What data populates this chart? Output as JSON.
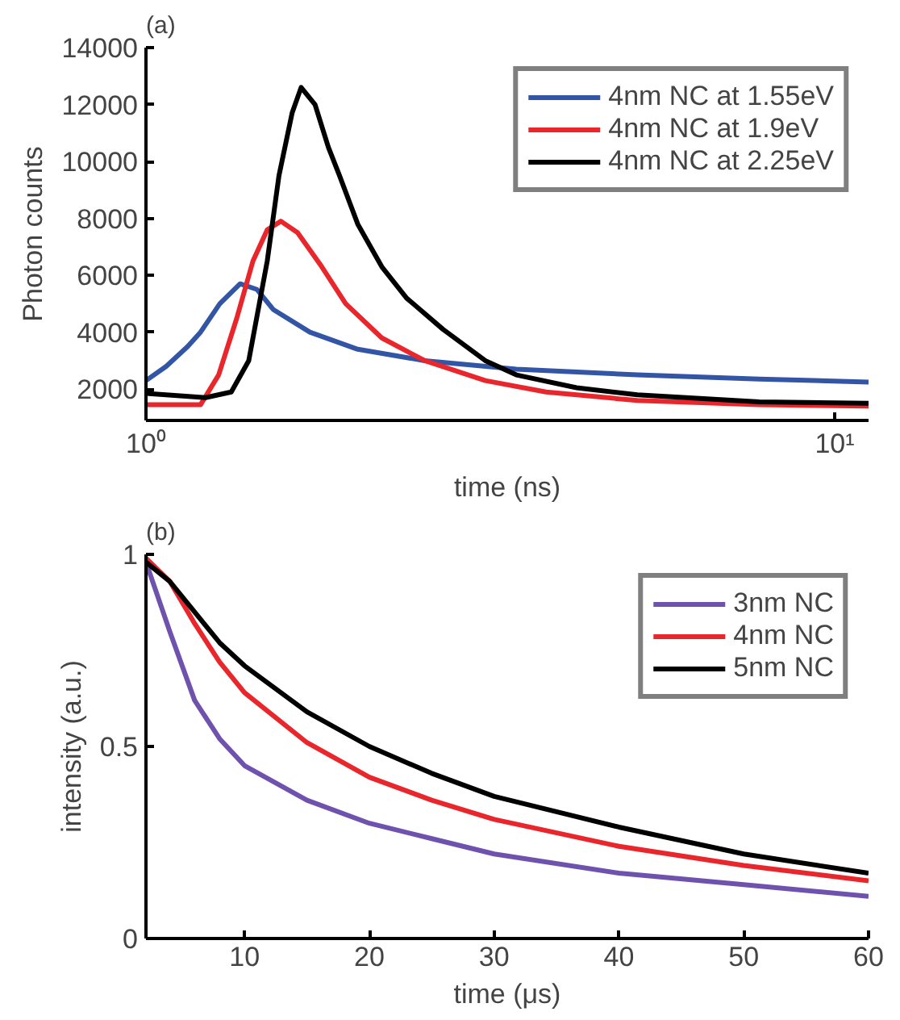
{
  "chart_data": [
    {
      "type": "line",
      "title": "(a)",
      "xlabel": "time (ns)",
      "ylabel": "Photon counts",
      "log": "x",
      "xlim": [
        1,
        11.2
      ],
      "xticks": [
        {
          "value": 1,
          "label": "10⁰"
        },
        {
          "value": 10,
          "label": "10¹"
        }
      ],
      "ylim": [
        900,
        14000
      ],
      "yticks": [
        2000,
        4000,
        6000,
        8000,
        10000,
        12000,
        14000
      ],
      "legend": "top right",
      "grid": false,
      "series": [
        {
          "name": "4nm NC at 1.55eV",
          "color": "#3355a5",
          "x": [
            1,
            1.07,
            1.15,
            1.2,
            1.28,
            1.37,
            1.45,
            1.53,
            1.73,
            2.03,
            2.54,
            3.45,
            5.17,
            7.77,
            11.2
          ],
          "values": [
            2300,
            2800,
            3500,
            4000,
            5000,
            5700,
            5500,
            4800,
            4000,
            3400,
            3000,
            2700,
            2500,
            2350,
            2250
          ]
        },
        {
          "name": "4nm NC at 1.9eV",
          "color": "#e8262b",
          "x": [
            1,
            1.2,
            1.275,
            1.355,
            1.43,
            1.5,
            1.57,
            1.66,
            1.8,
            1.95,
            2.2,
            2.54,
            3.11,
            3.81,
            5.17,
            7.77,
            11.2
          ],
          "values": [
            1450,
            1450,
            2500,
            4500,
            6500,
            7600,
            7900,
            7500,
            6300,
            5000,
            3800,
            3000,
            2300,
            1900,
            1600,
            1450,
            1400
          ]
        },
        {
          "name": "4nm NC at 2.25eV",
          "color": "#000000",
          "x": [
            1,
            1.22,
            1.33,
            1.41,
            1.5,
            1.56,
            1.63,
            1.68,
            1.76,
            1.84,
            1.91,
            2.03,
            2.2,
            2.39,
            2.7,
            3.11,
            3.45,
            4.22,
            5.17,
            7.77,
            11.2
          ],
          "values": [
            1850,
            1700,
            1900,
            3000,
            6500,
            9500,
            11700,
            12600,
            12000,
            10500,
            9500,
            7800,
            6300,
            5200,
            4100,
            3000,
            2500,
            2050,
            1800,
            1550,
            1500
          ]
        }
      ]
    },
    {
      "type": "line",
      "title": "(b)",
      "xlabel": "time (μs)",
      "ylabel": "intensity (a.u.)",
      "xlim": [
        2.1,
        60
      ],
      "xticks": [
        10,
        20,
        30,
        40,
        50,
        60
      ],
      "ylim": [
        0,
        1
      ],
      "yticks": [
        0,
        0.5,
        1
      ],
      "legend": "top right",
      "grid": false,
      "series": [
        {
          "name": "3nm NC",
          "color": "#6f52ad",
          "x": [
            2.1,
            4,
            6,
            8,
            10,
            15,
            20,
            25,
            30,
            40,
            50,
            60
          ],
          "values": [
            0.98,
            0.8,
            0.62,
            0.52,
            0.45,
            0.36,
            0.3,
            0.26,
            0.22,
            0.17,
            0.14,
            0.11
          ]
        },
        {
          "name": "4nm NC",
          "color": "#e8262b",
          "x": [
            2.1,
            4,
            6,
            8,
            10,
            15,
            20,
            25,
            30,
            40,
            50,
            60
          ],
          "values": [
            0.99,
            0.93,
            0.82,
            0.72,
            0.64,
            0.51,
            0.42,
            0.36,
            0.31,
            0.24,
            0.19,
            0.15
          ]
        },
        {
          "name": "5nm NC",
          "color": "#000000",
          "x": [
            2.1,
            4,
            6,
            8,
            10,
            15,
            20,
            25,
            30,
            40,
            50,
            60
          ],
          "values": [
            0.98,
            0.93,
            0.85,
            0.77,
            0.71,
            0.59,
            0.5,
            0.43,
            0.37,
            0.29,
            0.22,
            0.17
          ]
        }
      ]
    }
  ]
}
